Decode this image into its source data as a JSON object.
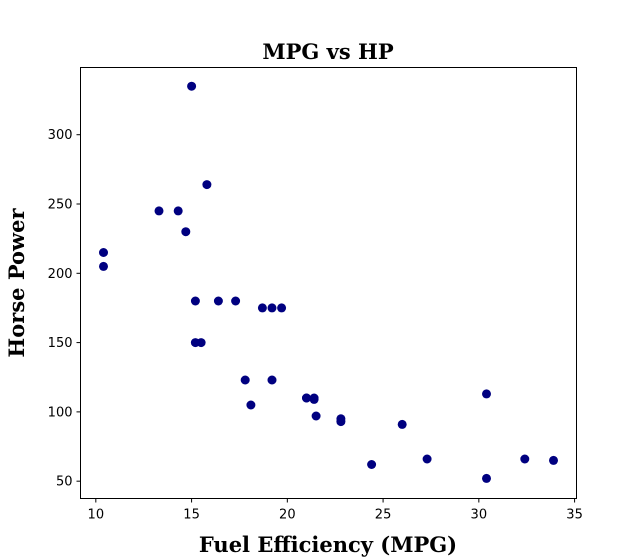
{
  "chart_data": {
    "type": "scatter",
    "title": "MPG vs HP",
    "xlabel": "Fuel Efficiency (MPG)",
    "ylabel": "Horse Power",
    "xlim": [
      9.2,
      35.1
    ],
    "ylim": [
      37.5,
      348.5
    ],
    "xticks": [
      10,
      15,
      20,
      25,
      30,
      35
    ],
    "yticks": [
      50,
      100,
      150,
      200,
      250,
      300
    ],
    "grid": false,
    "legend": "none",
    "marker_color": "#000080",
    "points": [
      {
        "x": 21.0,
        "y": 110
      },
      {
        "x": 21.0,
        "y": 110
      },
      {
        "x": 22.8,
        "y": 93
      },
      {
        "x": 21.4,
        "y": 110
      },
      {
        "x": 18.7,
        "y": 175
      },
      {
        "x": 18.1,
        "y": 105
      },
      {
        "x": 14.3,
        "y": 245
      },
      {
        "x": 24.4,
        "y": 62
      },
      {
        "x": 22.8,
        "y": 95
      },
      {
        "x": 19.2,
        "y": 123
      },
      {
        "x": 17.8,
        "y": 123
      },
      {
        "x": 16.4,
        "y": 180
      },
      {
        "x": 17.3,
        "y": 180
      },
      {
        "x": 15.2,
        "y": 180
      },
      {
        "x": 10.4,
        "y": 205
      },
      {
        "x": 10.4,
        "y": 215
      },
      {
        "x": 14.7,
        "y": 230
      },
      {
        "x": 32.4,
        "y": 66
      },
      {
        "x": 30.4,
        "y": 52
      },
      {
        "x": 33.9,
        "y": 65
      },
      {
        "x": 21.5,
        "y": 97
      },
      {
        "x": 15.5,
        "y": 150
      },
      {
        "x": 15.2,
        "y": 150
      },
      {
        "x": 13.3,
        "y": 245
      },
      {
        "x": 19.2,
        "y": 175
      },
      {
        "x": 27.3,
        "y": 66
      },
      {
        "x": 26.0,
        "y": 91
      },
      {
        "x": 30.4,
        "y": 113
      },
      {
        "x": 15.8,
        "y": 264
      },
      {
        "x": 19.7,
        "y": 175
      },
      {
        "x": 15.0,
        "y": 335
      },
      {
        "x": 21.4,
        "y": 109
      }
    ]
  }
}
